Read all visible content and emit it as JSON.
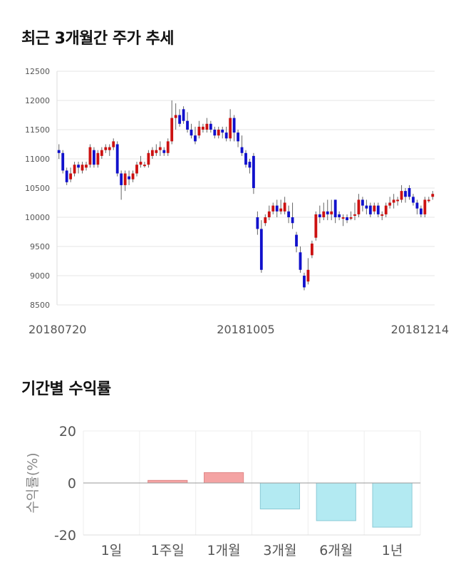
{
  "section1": {
    "title": "최근 3개월간 주가 추세"
  },
  "section2": {
    "title": "기간별 수익률"
  },
  "chart_data": [
    {
      "type": "candlestick",
      "title": "최근 3개월간 주가 추세",
      "ylim": [
        8500,
        12500
      ],
      "yticks": [
        8500,
        9000,
        9500,
        10000,
        10500,
        11000,
        11500,
        12000,
        12500
      ],
      "x_tick_labels": [
        "20180720",
        "20181005",
        "20181214"
      ],
      "colors": {
        "up": "#cc1111",
        "down": "#1111cc",
        "wick": "#666666"
      },
      "grid": true,
      "candles": [
        [
          11150,
          11100,
          11250,
          11000
        ],
        [
          11100,
          10800,
          11150,
          10750
        ],
        [
          10800,
          10600,
          10850,
          10550
        ],
        [
          10650,
          10750,
          10850,
          10600
        ],
        [
          10750,
          10900,
          10950,
          10700
        ],
        [
          10900,
          10850,
          10950,
          10750
        ],
        [
          10800,
          10900,
          10950,
          10750
        ],
        [
          10850,
          10900,
          10950,
          10800
        ],
        [
          10900,
          11200,
          11250,
          10850
        ],
        [
          11150,
          10900,
          11200,
          10850
        ],
        [
          10900,
          11100,
          11150,
          10850
        ],
        [
          11050,
          11150,
          11200,
          11000
        ],
        [
          11150,
          11200,
          11250,
          11100
        ],
        [
          11150,
          11200,
          11250,
          11050
        ],
        [
          11200,
          11300,
          11350,
          11150
        ],
        [
          11250,
          10750,
          11300,
          10700
        ],
        [
          10750,
          10550,
          10800,
          10300
        ],
        [
          10550,
          10750,
          10800,
          10450
        ],
        [
          10700,
          10650,
          10800,
          10550
        ],
        [
          10650,
          10750,
          10800,
          10600
        ],
        [
          10750,
          10900,
          10950,
          10700
        ],
        [
          10900,
          10950,
          11050,
          10850
        ],
        [
          10900,
          10900,
          10950,
          10850
        ],
        [
          10900,
          11100,
          11150,
          10850
        ],
        [
          11050,
          11150,
          11200,
          11000
        ],
        [
          11100,
          11150,
          11250,
          11050
        ],
        [
          11150,
          11200,
          11300,
          11050
        ],
        [
          11150,
          11100,
          11200,
          11050
        ],
        [
          11100,
          11300,
          11350,
          11050
        ],
        [
          11300,
          11700,
          12000,
          11250
        ],
        [
          11700,
          11750,
          11950,
          11500
        ],
        [
          11750,
          11600,
          11850,
          11550
        ],
        [
          11850,
          11650,
          11900,
          11600
        ],
        [
          11650,
          11500,
          11800,
          11450
        ],
        [
          11500,
          11400,
          11600,
          11350
        ],
        [
          11400,
          11300,
          11550,
          11250
        ],
        [
          11400,
          11550,
          11650,
          11350
        ],
        [
          11500,
          11550,
          11600,
          11450
        ],
        [
          11500,
          11600,
          11700,
          11450
        ],
        [
          11600,
          11500,
          11650,
          11450
        ],
        [
          11500,
          11400,
          11550,
          11350
        ],
        [
          11400,
          11500,
          11550,
          11350
        ],
        [
          11500,
          11450,
          11550,
          11350
        ],
        [
          11450,
          11350,
          11550,
          11300
        ],
        [
          11350,
          11700,
          11850,
          11300
        ],
        [
          11700,
          11450,
          11750,
          11300
        ],
        [
          11450,
          11300,
          11500,
          11200
        ],
        [
          11200,
          11100,
          11400,
          11050
        ],
        [
          11100,
          10900,
          11150,
          10850
        ],
        [
          10950,
          10850,
          11000,
          10750
        ],
        [
          11050,
          10500,
          11100,
          10400
        ],
        [
          10000,
          9800,
          10100,
          9700
        ],
        [
          9800,
          9100,
          9950,
          9050
        ],
        [
          9900,
          10000,
          10050,
          9850
        ],
        [
          10000,
          10100,
          10200,
          9950
        ],
        [
          10100,
          10200,
          10250,
          10050
        ],
        [
          10200,
          10100,
          10300,
          10000
        ],
        [
          10100,
          10150,
          10300,
          10050
        ],
        [
          10100,
          10250,
          10350,
          10050
        ],
        [
          10100,
          10000,
          10200,
          9900
        ],
        [
          10000,
          9900,
          10250,
          9800
        ],
        [
          9700,
          9500,
          9750,
          9400
        ],
        [
          9400,
          9100,
          9500,
          9050
        ],
        [
          9000,
          8800,
          9050,
          8750
        ],
        [
          8900,
          9100,
          9300,
          8850
        ],
        [
          9350,
          9550,
          9600,
          9300
        ],
        [
          9650,
          10050,
          10100,
          9600
        ],
        [
          10050,
          10000,
          10200,
          9900
        ],
        [
          10000,
          10100,
          10250,
          9950
        ],
        [
          10100,
          10050,
          10300,
          9950
        ],
        [
          10050,
          10100,
          10300,
          9950
        ],
        [
          10300,
          10000,
          10300,
          9900
        ],
        [
          10050,
          10000,
          10100,
          9950
        ],
        [
          10000,
          10000,
          10050,
          9850
        ],
        [
          10000,
          9950,
          10050,
          9900
        ],
        [
          10000,
          10000,
          10100,
          9950
        ],
        [
          10050,
          10050,
          10250,
          9950
        ],
        [
          10050,
          10300,
          10400,
          10000
        ],
        [
          10300,
          10200,
          10350,
          10100
        ],
        [
          10200,
          10150,
          10300,
          10050
        ],
        [
          10200,
          10050,
          10250,
          10000
        ],
        [
          10100,
          10200,
          10250,
          10050
        ],
        [
          10200,
          10050,
          10250,
          10000
        ],
        [
          10050,
          10050,
          10100,
          9950
        ],
        [
          10050,
          10200,
          10250,
          10000
        ],
        [
          10200,
          10250,
          10350,
          10150
        ],
        [
          10250,
          10300,
          10400,
          10150
        ],
        [
          10300,
          10300,
          10350,
          10200
        ],
        [
          10300,
          10450,
          10550,
          10250
        ],
        [
          10450,
          10350,
          10500,
          10250
        ],
        [
          10500,
          10350,
          10550,
          10300
        ],
        [
          10350,
          10250,
          10400,
          10200
        ],
        [
          10250,
          10150,
          10300,
          10050
        ],
        [
          10150,
          10050,
          10200,
          10000
        ],
        [
          10050,
          10300,
          10350,
          10000
        ],
        [
          10300,
          10300,
          10350,
          10250
        ],
        [
          10350,
          10400,
          10450,
          10300
        ]
      ]
    },
    {
      "type": "bar",
      "title": "기간별 수익률",
      "categories": [
        "1일",
        "1주일",
        "1개월",
        "3개월",
        "6개월",
        "1년"
      ],
      "values": [
        0,
        1,
        4,
        -10,
        -14.5,
        -17
      ],
      "ylabel": "수익률(%)",
      "ylim": [
        -20,
        20
      ],
      "yticks": [
        20,
        0,
        -20
      ],
      "colors": {
        "positive": "#f4a3a3",
        "positive_edge": "#e08888",
        "negative": "#b3eaf2",
        "negative_edge": "#8ccad6"
      },
      "grid": true
    }
  ]
}
